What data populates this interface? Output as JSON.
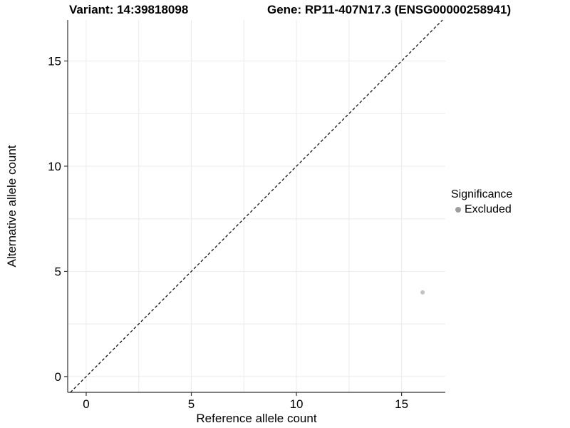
{
  "titles": {
    "variant": "Variant: 14:39818098",
    "gene": "Gene: RP11-407N17.3 (ENSG00000258941)"
  },
  "chart_data": {
    "type": "scatter",
    "title_left": "Variant: 14:39818098",
    "title_right": "Gene: RP11-407N17.3 (ENSG00000258941)",
    "xlabel": "Reference allele count",
    "ylabel": "Alternative allele count",
    "xlim": [
      -0.88,
      17.08
    ],
    "ylim": [
      -0.75,
      16.95
    ],
    "x_ticks": [
      0,
      5,
      10,
      15
    ],
    "y_ticks": [
      0,
      5,
      10,
      15
    ],
    "minor_gridlines": [
      2.5,
      7.5,
      12.5
    ],
    "grid": true,
    "grid_color": "#ebebeb",
    "axis_color": "#333333",
    "diagonal": {
      "style": "dashed",
      "equation": "y = x",
      "color": "#000000"
    },
    "series": [
      {
        "name": "Excluded",
        "color": "#c2c2c2",
        "points": [
          {
            "x": 16,
            "y": 4
          }
        ]
      }
    ],
    "legend": {
      "title": "Significance",
      "position": "right",
      "items": [
        {
          "label": "Excluded",
          "color": "#9e9e9e"
        }
      ]
    }
  }
}
